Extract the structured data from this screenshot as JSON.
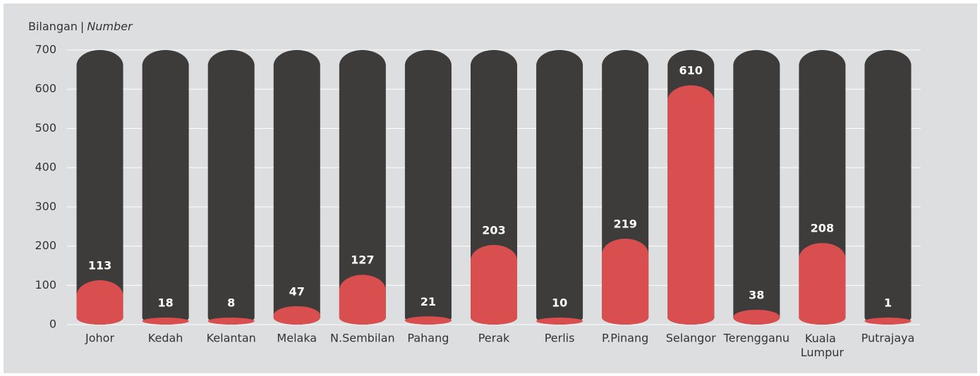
{
  "chart_data": {
    "type": "bar",
    "y_label": {
      "malay": "Bilangan",
      "separator": "|",
      "english": "Number"
    },
    "categories": [
      "Johor",
      "Kedah",
      "Kelantan",
      "Melaka",
      "N.Sembilan",
      "Pahang",
      "Perak",
      "Perlis",
      "P.Pinang",
      "Selangor",
      "Terengganu",
      "Kuala Lumpur",
      "Putrajaya"
    ],
    "values": [
      113,
      18,
      8,
      47,
      127,
      21,
      203,
      10,
      219,
      610,
      38,
      208,
      1
    ],
    "color": "#d94e4e",
    "track_color": "#3d3c3a",
    "ylim": [
      0,
      700
    ],
    "yticks": [
      0,
      100,
      200,
      300,
      400,
      500,
      600,
      700
    ],
    "grid": true
  }
}
